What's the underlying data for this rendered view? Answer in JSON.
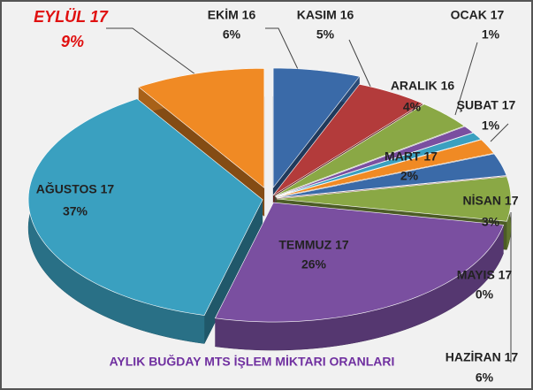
{
  "chart_data": {
    "type": "pie3d",
    "title": "AYLIK BUĞDAY MTS İŞLEM MİKTARI ORANLARI",
    "categories": [
      "EKİM 16",
      "KASIM 16",
      "ARALIK 16",
      "OCAK 17",
      "ŞUBAT 17",
      "MART 17",
      "NİSAN 17",
      "MAYIS 17",
      "HAZİRAN 17",
      "TEMMUZ 17",
      "AĞUSTOS 17",
      "EYLÜL 17"
    ],
    "values": [
      6,
      5,
      4,
      1,
      1,
      2,
      3,
      0,
      6,
      26,
      37,
      9
    ],
    "value_labels": [
      "6%",
      "5%",
      "4%",
      "1%",
      "1%",
      "2%",
      "3%",
      "0%",
      "6%",
      "26%",
      "37%",
      "9%"
    ],
    "colors": [
      "#3a6aa8",
      "#b33b3b",
      "#8aa845",
      "#7a4fa0",
      "#3aa0c0",
      "#f08a24",
      "#3a6aa8",
      "#b33b3b",
      "#8aa845",
      "#7a4fa0",
      "#3aa0c0",
      "#f08a24"
    ]
  }
}
